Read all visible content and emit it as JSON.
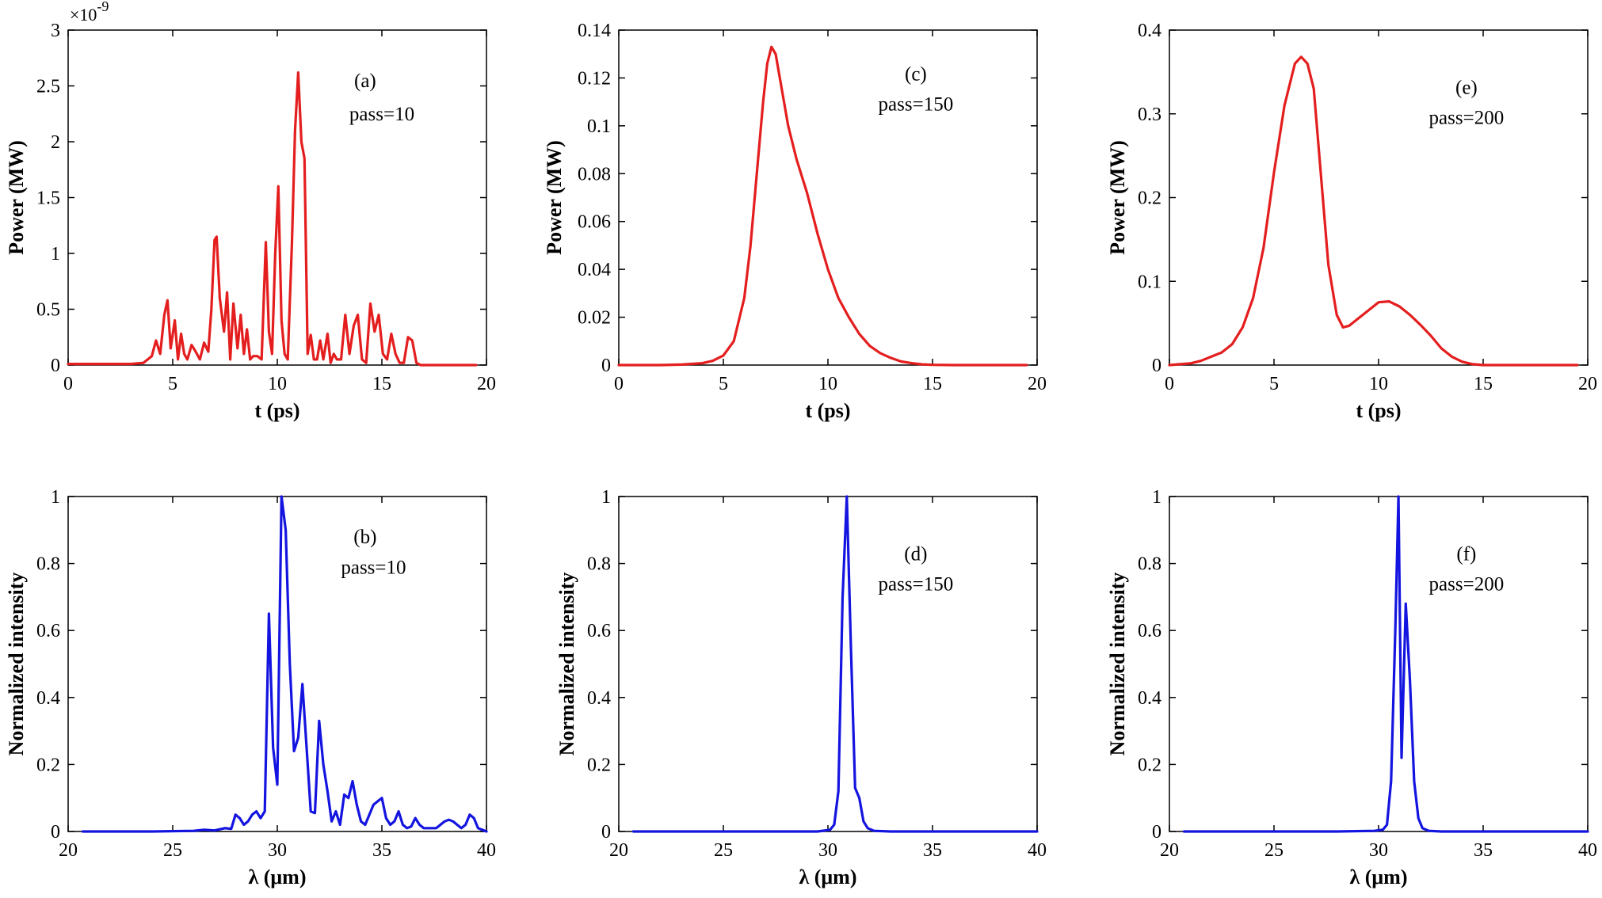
{
  "chart_data": [
    {
      "type": "line",
      "panel": "a",
      "annotation": "(a)",
      "pass_label": "pass=10",
      "xlabel": "t (ps)",
      "ylabel": "Power (MW)",
      "xlim": [
        0,
        20
      ],
      "ylim": [
        0,
        3
      ],
      "xticks": [
        "0",
        "5",
        "10",
        "15",
        "20"
      ],
      "yticks": [
        "0",
        "0.5",
        "1",
        "1.5",
        "2",
        "2.5",
        "3"
      ],
      "y_exponent": "×10",
      "y_exponent_power": "-9",
      "color": "#e41e1e",
      "series": [
        {
          "x": [
            0,
            1,
            2,
            3,
            3.6,
            4.0,
            4.2,
            4.4,
            4.6,
            4.75,
            4.9,
            5.1,
            5.25,
            5.4,
            5.55,
            5.7,
            5.9,
            6.1,
            6.3,
            6.5,
            6.7,
            6.85,
            7.0,
            7.1,
            7.25,
            7.45,
            7.6,
            7.75,
            7.9,
            8.1,
            8.25,
            8.4,
            8.55,
            8.7,
            8.85,
            9.05,
            9.25,
            9.45,
            9.6,
            9.75,
            9.9,
            10.05,
            10.2,
            10.35,
            10.5,
            10.7,
            10.85,
            11.0,
            11.15,
            11.3,
            11.45,
            11.6,
            11.75,
            11.9,
            12.05,
            12.2,
            12.4,
            12.55,
            12.7,
            12.85,
            13.05,
            13.25,
            13.45,
            13.65,
            13.85,
            14.05,
            14.25,
            14.45,
            14.65,
            14.85,
            15.05,
            15.25,
            15.45,
            15.65,
            15.85,
            16.05,
            16.25,
            16.45,
            16.65,
            16.85,
            17.05,
            17.25,
            17.45,
            17.65,
            17.8,
            17.95,
            18.2,
            18.5,
            19,
            19.5
          ],
          "y": [
            0.01,
            0.01,
            0.01,
            0.01,
            0.02,
            0.08,
            0.22,
            0.1,
            0.45,
            0.58,
            0.15,
            0.4,
            0.05,
            0.28,
            0.1,
            0.05,
            0.18,
            0.12,
            0.05,
            0.2,
            0.12,
            0.5,
            1.12,
            1.15,
            0.6,
            0.3,
            0.65,
            0.05,
            0.55,
            0.15,
            0.45,
            0.1,
            0.32,
            0.05,
            0.08,
            0.08,
            0.05,
            1.1,
            0.3,
            0.1,
            1.0,
            1.6,
            0.4,
            0.1,
            0.05,
            1.1,
            2.1,
            2.62,
            2.0,
            1.85,
            0.1,
            0.27,
            0.05,
            0.05,
            0.22,
            0.05,
            0.28,
            0.02,
            0.1,
            0.05,
            0.05,
            0.45,
            0.1,
            0.35,
            0.45,
            0.05,
            0.02,
            0.55,
            0.3,
            0.45,
            0.1,
            0.05,
            0.28,
            0.1,
            0.02,
            0.02,
            0.25,
            0.22,
            0.02,
            0.0,
            0.0,
            0.0,
            0.0,
            0.0,
            0.0,
            0.0,
            0.0,
            0.0,
            0.0,
            0.0
          ]
        }
      ]
    },
    {
      "type": "line",
      "panel": "c",
      "annotation": "(c)",
      "pass_label": "pass=150",
      "xlabel": "t (ps)",
      "ylabel": "Power (MW)",
      "xlim": [
        0,
        20
      ],
      "ylim": [
        0,
        0.14
      ],
      "xticks": [
        "0",
        "5",
        "10",
        "15",
        "20"
      ],
      "yticks": [
        "0",
        "0.02",
        "0.04",
        "0.06",
        "0.08",
        "0.1",
        "0.12",
        "0.14"
      ],
      "color": "#e41e1e",
      "series": [
        {
          "x": [
            0,
            2,
            3,
            4,
            4.5,
            5,
            5.5,
            6,
            6.3,
            6.6,
            6.9,
            7.1,
            7.3,
            7.5,
            7.8,
            8.1,
            8.5,
            9,
            9.5,
            10,
            10.5,
            11,
            11.5,
            12,
            12.5,
            13,
            13.5,
            14,
            14.5,
            15,
            16,
            17,
            18,
            19,
            19.5
          ],
          "y": [
            0,
            0,
            0.0002,
            0.0008,
            0.0018,
            0.004,
            0.01,
            0.028,
            0.05,
            0.08,
            0.11,
            0.126,
            0.133,
            0.13,
            0.115,
            0.1,
            0.086,
            0.072,
            0.055,
            0.04,
            0.028,
            0.02,
            0.013,
            0.008,
            0.005,
            0.003,
            0.0015,
            0.0008,
            0.0003,
            0.0001,
            0,
            0,
            0,
            0,
            0
          ]
        }
      ]
    },
    {
      "type": "line",
      "panel": "e",
      "annotation": "(e)",
      "pass_label": "pass=200",
      "xlabel": "t (ps)",
      "ylabel": "Power (MW)",
      "xlim": [
        0,
        20
      ],
      "ylim": [
        0,
        0.4
      ],
      "xticks": [
        "0",
        "5",
        "10",
        "15",
        "20"
      ],
      "yticks": [
        "0",
        "0.1",
        "0.2",
        "0.3",
        "0.4"
      ],
      "color": "#e41e1e",
      "series": [
        {
          "x": [
            0,
            1,
            1.5,
            2,
            2.5,
            3,
            3.5,
            4,
            4.5,
            5,
            5.5,
            6,
            6.3,
            6.6,
            6.9,
            7.2,
            7.6,
            8,
            8.3,
            8.6,
            9,
            9.5,
            10,
            10.5,
            11,
            11.5,
            12,
            12.5,
            13,
            13.5,
            14,
            14.5,
            15,
            16,
            17,
            18,
            19,
            19.5
          ],
          "y": [
            0,
            0.002,
            0.005,
            0.01,
            0.015,
            0.025,
            0.045,
            0.08,
            0.14,
            0.23,
            0.31,
            0.36,
            0.368,
            0.36,
            0.33,
            0.24,
            0.12,
            0.06,
            0.045,
            0.047,
            0.055,
            0.065,
            0.075,
            0.076,
            0.07,
            0.06,
            0.048,
            0.035,
            0.02,
            0.01,
            0.004,
            0.001,
            0,
            0,
            0,
            0,
            0,
            0
          ]
        }
      ]
    },
    {
      "type": "line",
      "panel": "b",
      "annotation": "(b)",
      "pass_label": "pass=10",
      "xlabel": "λ (μm)",
      "ylabel": "Normalized  intensity",
      "xlim": [
        20,
        40
      ],
      "ylim": [
        0,
        1
      ],
      "xticks": [
        "20",
        "25",
        "30",
        "35",
        "40"
      ],
      "yticks": [
        "0",
        "0.2",
        "0.4",
        "0.6",
        "0.8",
        "1"
      ],
      "color": "#1414e0",
      "series": [
        {
          "x": [
            20.7,
            24,
            26,
            26.5,
            27,
            27.5,
            27.8,
            28.0,
            28.2,
            28.4,
            28.6,
            28.8,
            29.0,
            29.2,
            29.4,
            29.6,
            29.8,
            30.0,
            30.2,
            30.4,
            30.6,
            30.8,
            31.0,
            31.2,
            31.4,
            31.6,
            31.8,
            32.0,
            32.2,
            32.4,
            32.6,
            32.8,
            33.0,
            33.2,
            33.4,
            33.6,
            33.8,
            34.0,
            34.2,
            34.4,
            34.6,
            34.8,
            35.0,
            35.2,
            35.4,
            35.6,
            35.8,
            36.0,
            36.2,
            36.4,
            36.6,
            36.8,
            37.0,
            37.2,
            37.4,
            37.6,
            37.8,
            38.0,
            38.2,
            38.4,
            38.6,
            38.8,
            39.0,
            39.2,
            39.4,
            39.6,
            39.8,
            40.0
          ],
          "y": [
            0,
            0,
            0.002,
            0.005,
            0.003,
            0.01,
            0.008,
            0.05,
            0.04,
            0.02,
            0.03,
            0.05,
            0.06,
            0.04,
            0.06,
            0.65,
            0.25,
            0.14,
            1.0,
            0.9,
            0.5,
            0.24,
            0.28,
            0.44,
            0.25,
            0.06,
            0.055,
            0.33,
            0.2,
            0.12,
            0.03,
            0.06,
            0.02,
            0.11,
            0.1,
            0.15,
            0.08,
            0.03,
            0.02,
            0.05,
            0.08,
            0.09,
            0.1,
            0.04,
            0.02,
            0.03,
            0.06,
            0.02,
            0.01,
            0.015,
            0.04,
            0.02,
            0.01,
            0.01,
            0.01,
            0.01,
            0.02,
            0.03,
            0.035,
            0.03,
            0.02,
            0.01,
            0.02,
            0.05,
            0.04,
            0.01,
            0.005,
            0
          ]
        }
      ]
    },
    {
      "type": "line",
      "panel": "d",
      "annotation": "(d)",
      "pass_label": "pass=150",
      "xlabel": "λ (μm)",
      "ylabel": "Normalized  intensity",
      "xlim": [
        20,
        40
      ],
      "ylim": [
        0,
        1
      ],
      "xticks": [
        "20",
        "25",
        "30",
        "35",
        "40"
      ],
      "yticks": [
        "0",
        "0.2",
        "0.4",
        "0.6",
        "0.8",
        "1"
      ],
      "color": "#1414e0",
      "series": [
        {
          "x": [
            20.7,
            28,
            29.5,
            30.1,
            30.3,
            30.5,
            30.7,
            30.9,
            31.1,
            31.3,
            31.5,
            31.7,
            31.9,
            32.2,
            33,
            36,
            40
          ],
          "y": [
            0,
            0,
            0,
            0.005,
            0.02,
            0.12,
            0.7,
            1.0,
            0.55,
            0.13,
            0.1,
            0.03,
            0.01,
            0.002,
            0,
            0,
            0
          ]
        }
      ]
    },
    {
      "type": "line",
      "panel": "f",
      "annotation": "(f)",
      "pass_label": "pass=200",
      "xlabel": "λ (μm)",
      "ylabel": "Normalized  intensity",
      "xlim": [
        20,
        40
      ],
      "ylim": [
        0,
        1
      ],
      "xticks": [
        "20",
        "25",
        "30",
        "35",
        "40"
      ],
      "yticks": [
        "0",
        "0.2",
        "0.4",
        "0.6",
        "0.8",
        "1"
      ],
      "color": "#1414e0",
      "series": [
        {
          "x": [
            20.7,
            28,
            29.8,
            30.2,
            30.4,
            30.6,
            30.8,
            30.95,
            31.1,
            31.3,
            31.5,
            31.7,
            31.9,
            32.1,
            32.4,
            33,
            36,
            40
          ],
          "y": [
            0,
            0,
            0.002,
            0.005,
            0.02,
            0.15,
            0.6,
            1.0,
            0.22,
            0.68,
            0.45,
            0.15,
            0.04,
            0.01,
            0.002,
            0,
            0,
            0
          ]
        }
      ]
    }
  ]
}
